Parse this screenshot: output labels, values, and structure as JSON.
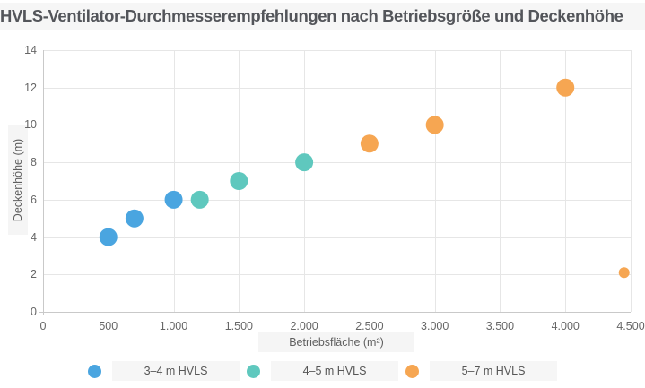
{
  "chart": {
    "title": "HVLS-Ventilator-Durchmesserempfehlungen nach Betriebsgröße und Deckenhöhe",
    "x_axis_title": "Betriebsfläche (m²)",
    "y_axis_title": "Deckenhöhe (m)"
  },
  "chart_data": {
    "type": "scatter",
    "title": "HVLS-Ventilator-Durchmesserempfehlungen nach Betriebsgröße und Deckenhöhe",
    "xlabel": "Betriebsfläche (m²)",
    "ylabel": "Deckenhöhe (m)",
    "xlim": [
      0,
      4500
    ],
    "ylim": [
      0,
      14
    ],
    "x_tick_values": [
      0,
      500,
      1000,
      1500,
      2000,
      2500,
      3000,
      3500,
      4000,
      4500
    ],
    "x_tick_labels": [
      "0",
      "500",
      "1.000",
      "1.500",
      "2.000",
      "2.500",
      "3.000",
      "3.500",
      "4.000",
      "4.500"
    ],
    "y_tick_values": [
      0,
      2,
      4,
      6,
      8,
      10,
      12,
      14
    ],
    "y_tick_labels": [
      "0",
      "2",
      "4",
      "6",
      "8",
      "10",
      "12",
      "14"
    ],
    "grid": true,
    "legend_position": "bottom",
    "series": [
      {
        "name": "3–4 m HVLS",
        "color": "#4aa5e0",
        "marker_radius": 10,
        "points": [
          {
            "x": 500,
            "y": 4
          },
          {
            "x": 700,
            "y": 5
          },
          {
            "x": 1000,
            "y": 6
          }
        ]
      },
      {
        "name": "4–5 m HVLS",
        "color": "#5fc8be",
        "marker_radius": 10,
        "points": [
          {
            "x": 1200,
            "y": 6
          },
          {
            "x": 1500,
            "y": 7
          },
          {
            "x": 2000,
            "y": 8
          }
        ]
      },
      {
        "name": "5–7 m HVLS",
        "color": "#f6a652",
        "marker_radius": 10,
        "points": [
          {
            "x": 2500,
            "y": 9
          },
          {
            "x": 3000,
            "y": 10
          },
          {
            "x": 4000,
            "y": 12
          },
          {
            "x": 4450,
            "y": 2.1,
            "marker_radius": 6
          }
        ]
      }
    ]
  },
  "colors": {
    "grid": "#e6e6e6",
    "axis": "#c9c9c9",
    "tick_text": "#666666",
    "title_text": "#53555a",
    "highlight_bg": "#f6f6f6"
  }
}
